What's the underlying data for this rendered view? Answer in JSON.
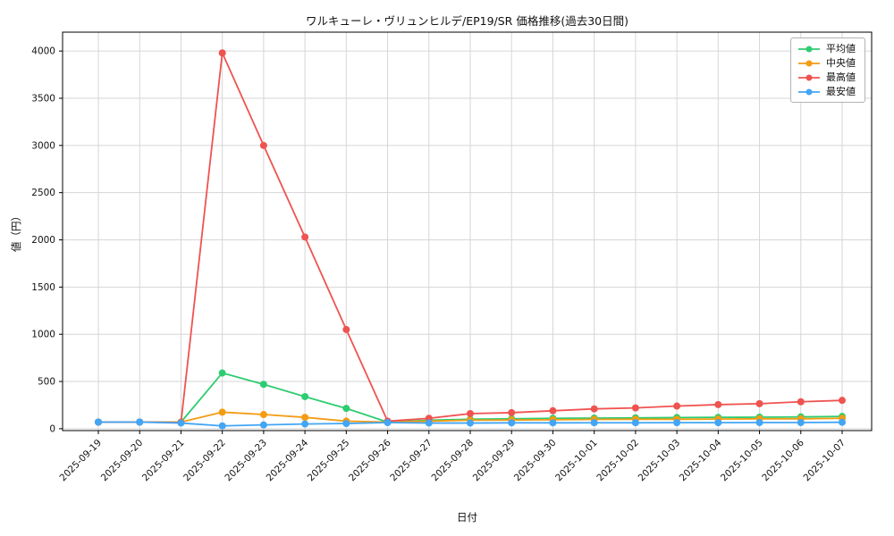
{
  "chart_data": {
    "type": "line",
    "title": "ワルキューレ・ヴリュンヒルデ/EP19/SR 価格推移(過去30日間)",
    "xlabel": "日付",
    "ylabel": "値（円）",
    "x": [
      "2025-09-19",
      "2025-09-20",
      "2025-09-21",
      "2025-09-22",
      "2025-09-23",
      "2025-09-24",
      "2025-09-25",
      "2025-09-26",
      "2025-09-27",
      "2025-09-28",
      "2025-09-29",
      "2025-09-30",
      "2025-10-01",
      "2025-10-02",
      "2025-10-03",
      "2025-10-04",
      "2025-10-05",
      "2025-10-06",
      "2025-10-07"
    ],
    "yticks": [
      0,
      500,
      1000,
      1500,
      2000,
      2500,
      3000,
      3500,
      4000
    ],
    "ylim": [
      -20,
      4200
    ],
    "grid": true,
    "grid_color": "#d6d6d6",
    "legend_position": "upper right",
    "series": [
      {
        "name": "平均値",
        "color": "#2ecc71",
        "values": [
          70,
          70,
          70,
          590,
          470,
          340,
          215,
          70,
          90,
          100,
          105,
          110,
          112,
          115,
          118,
          120,
          122,
          125,
          130
        ]
      },
      {
        "name": "中央値",
        "color": "#f39c12",
        "values": [
          70,
          70,
          70,
          175,
          150,
          120,
          80,
          70,
          80,
          90,
          92,
          95,
          98,
          100,
          100,
          102,
          105,
          105,
          110
        ]
      },
      {
        "name": "最高値",
        "color": "#ef5350",
        "values": [
          70,
          70,
          65,
          3980,
          3000,
          2030,
          1050,
          80,
          110,
          160,
          170,
          190,
          210,
          220,
          240,
          255,
          265,
          285,
          300
        ]
      },
      {
        "name": "最安値",
        "color": "#42a5f5",
        "values": [
          70,
          70,
          60,
          30,
          40,
          50,
          55,
          65,
          60,
          60,
          62,
          62,
          63,
          63,
          64,
          64,
          65,
          65,
          68
        ]
      }
    ]
  }
}
